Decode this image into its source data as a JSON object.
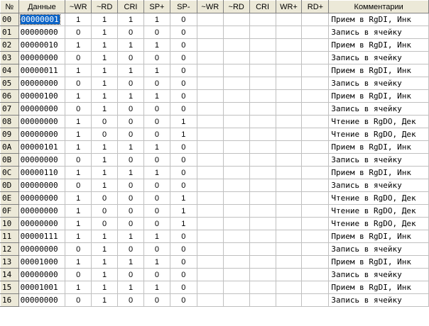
{
  "colors": {
    "header_bg": "#ece9d8",
    "selection_bg": "#0a64c8",
    "grid_line": "#c0c0c0"
  },
  "columns": [
    "№",
    "Данные",
    "~WR",
    "~RD",
    "CRI",
    "SP+",
    "SP-",
    "~WR",
    "~RD",
    "CRI",
    "WR+",
    "RD+",
    "Комментарии"
  ],
  "rows": [
    {
      "num": "00",
      "data": "00000001",
      "cells": [
        "1",
        "1",
        "1",
        "1",
        "0",
        "",
        "",
        "",
        "",
        ""
      ],
      "comment": "Прием в RgDI, Инк"
    },
    {
      "num": "01",
      "data": "00000000",
      "cells": [
        "0",
        "1",
        "0",
        "0",
        "0",
        "",
        "",
        "",
        "",
        ""
      ],
      "comment": "Запись в ячейку"
    },
    {
      "num": "02",
      "data": "00000010",
      "cells": [
        "1",
        "1",
        "1",
        "1",
        "0",
        "",
        "",
        "",
        "",
        ""
      ],
      "comment": "Прием в RgDI, Инк"
    },
    {
      "num": "03",
      "data": "00000000",
      "cells": [
        "0",
        "1",
        "0",
        "0",
        "0",
        "",
        "",
        "",
        "",
        ""
      ],
      "comment": "Запись в ячейку"
    },
    {
      "num": "04",
      "data": "00000011",
      "cells": [
        "1",
        "1",
        "1",
        "1",
        "0",
        "",
        "",
        "",
        "",
        ""
      ],
      "comment": "Прием в RgDI, Инк"
    },
    {
      "num": "05",
      "data": "00000000",
      "cells": [
        "0",
        "1",
        "0",
        "0",
        "0",
        "",
        "",
        "",
        "",
        ""
      ],
      "comment": "Запись в ячейку"
    },
    {
      "num": "06",
      "data": "00000100",
      "cells": [
        "1",
        "1",
        "1",
        "1",
        "0",
        "",
        "",
        "",
        "",
        ""
      ],
      "comment": "Прием в RgDI, Инк"
    },
    {
      "num": "07",
      "data": "00000000",
      "cells": [
        "0",
        "1",
        "0",
        "0",
        "0",
        "",
        "",
        "",
        "",
        ""
      ],
      "comment": "Запись в ячейку"
    },
    {
      "num": "08",
      "data": "00000000",
      "cells": [
        "1",
        "0",
        "0",
        "0",
        "1",
        "",
        "",
        "",
        "",
        ""
      ],
      "comment": "Чтение в RgDO, Дек"
    },
    {
      "num": "09",
      "data": "00000000",
      "cells": [
        "1",
        "0",
        "0",
        "0",
        "1",
        "",
        "",
        "",
        "",
        ""
      ],
      "comment": "Чтение в RgDO, Дек"
    },
    {
      "num": "0A",
      "data": "00000101",
      "cells": [
        "1",
        "1",
        "1",
        "1",
        "0",
        "",
        "",
        "",
        "",
        ""
      ],
      "comment": "Прием в RgDI, Инк"
    },
    {
      "num": "0B",
      "data": "00000000",
      "cells": [
        "0",
        "1",
        "0",
        "0",
        "0",
        "",
        "",
        "",
        "",
        ""
      ],
      "comment": "Запись в ячейку"
    },
    {
      "num": "0C",
      "data": "00000110",
      "cells": [
        "1",
        "1",
        "1",
        "1",
        "0",
        "",
        "",
        "",
        "",
        ""
      ],
      "comment": "Прием в RgDI, Инк"
    },
    {
      "num": "0D",
      "data": "00000000",
      "cells": [
        "0",
        "1",
        "0",
        "0",
        "0",
        "",
        "",
        "",
        "",
        ""
      ],
      "comment": "Запись в ячейку"
    },
    {
      "num": "0E",
      "data": "00000000",
      "cells": [
        "1",
        "0",
        "0",
        "0",
        "1",
        "",
        "",
        "",
        "",
        ""
      ],
      "comment": "Чтение в RgDO, Дек"
    },
    {
      "num": "0F",
      "data": "00000000",
      "cells": [
        "1",
        "0",
        "0",
        "0",
        "1",
        "",
        "",
        "",
        "",
        ""
      ],
      "comment": "Чтение в RgDO, Дек"
    },
    {
      "num": "10",
      "data": "00000000",
      "cells": [
        "1",
        "0",
        "0",
        "0",
        "1",
        "",
        "",
        "",
        "",
        ""
      ],
      "comment": "Чтение в RgDO, Дек"
    },
    {
      "num": "11",
      "data": "00000111",
      "cells": [
        "1",
        "1",
        "1",
        "1",
        "0",
        "",
        "",
        "",
        "",
        ""
      ],
      "comment": "Прием в RgDI, Инк"
    },
    {
      "num": "12",
      "data": "00000000",
      "cells": [
        "0",
        "1",
        "0",
        "0",
        "0",
        "",
        "",
        "",
        "",
        ""
      ],
      "comment": "Запись в ячейку"
    },
    {
      "num": "13",
      "data": "00001000",
      "cells": [
        "1",
        "1",
        "1",
        "1",
        "0",
        "",
        "",
        "",
        "",
        ""
      ],
      "comment": "Прием в RgDI, Инк"
    },
    {
      "num": "14",
      "data": "00000000",
      "cells": [
        "0",
        "1",
        "0",
        "0",
        "0",
        "",
        "",
        "",
        "",
        ""
      ],
      "comment": "Запись в ячейку"
    },
    {
      "num": "15",
      "data": "00001001",
      "cells": [
        "1",
        "1",
        "1",
        "1",
        "0",
        "",
        "",
        "",
        "",
        ""
      ],
      "comment": "Прием в RgDI, Инк"
    },
    {
      "num": "16",
      "data": "00000000",
      "cells": [
        "0",
        "1",
        "0",
        "0",
        "0",
        "",
        "",
        "",
        "",
        ""
      ],
      "comment": "Запись в ячейку"
    }
  ]
}
